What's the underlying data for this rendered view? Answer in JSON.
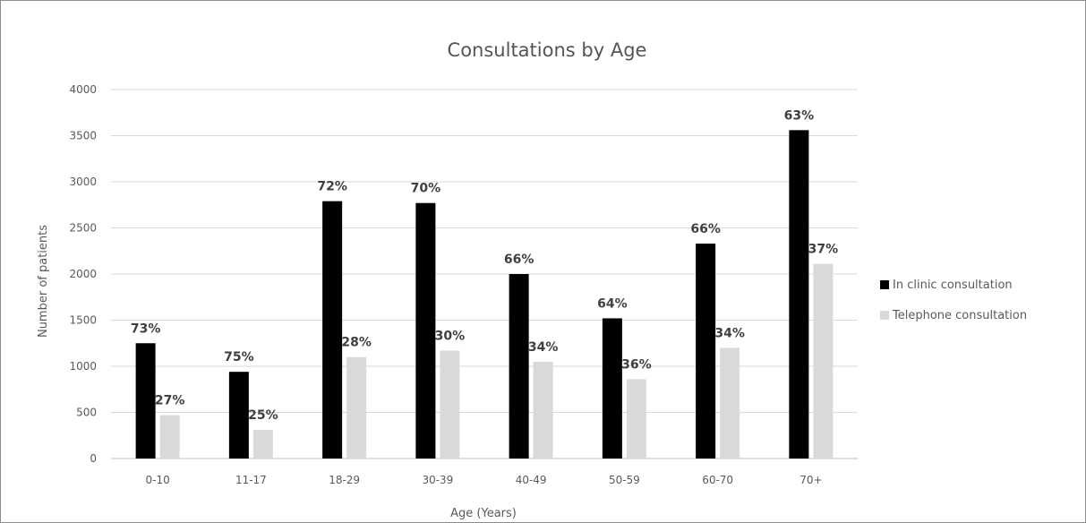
{
  "chart_data": {
    "type": "bar",
    "title": "Consultations by Age",
    "xlabel": "Age (Years)",
    "ylabel": "Number of patients",
    "categories": [
      "0-10",
      "11-17",
      "18-29",
      "30-39",
      "40-49",
      "50-59",
      "60-70",
      "70+"
    ],
    "yticks": [
      "0",
      "500",
      "1000",
      "1500",
      "2000",
      "2500",
      "3000",
      "3500",
      "4000"
    ],
    "ylim": [
      0,
      4000
    ],
    "grid": true,
    "legend_position": "right",
    "series": [
      {
        "name": "In clinic consultation",
        "color": "#000000",
        "values": [
          1250,
          940,
          2790,
          2770,
          2000,
          1520,
          2330,
          3560
        ],
        "labels": [
          "73%",
          "75%",
          "72%",
          "70%",
          "66%",
          "64%",
          "66%",
          "63%"
        ]
      },
      {
        "name": "Telephone consultation",
        "color": "#d9d9d9",
        "values": [
          470,
          310,
          1100,
          1170,
          1050,
          860,
          1200,
          2110
        ],
        "labels": [
          "27%",
          "25%",
          "28%",
          "30%",
          "34%",
          "36%",
          "34%",
          "37%"
        ]
      }
    ]
  }
}
